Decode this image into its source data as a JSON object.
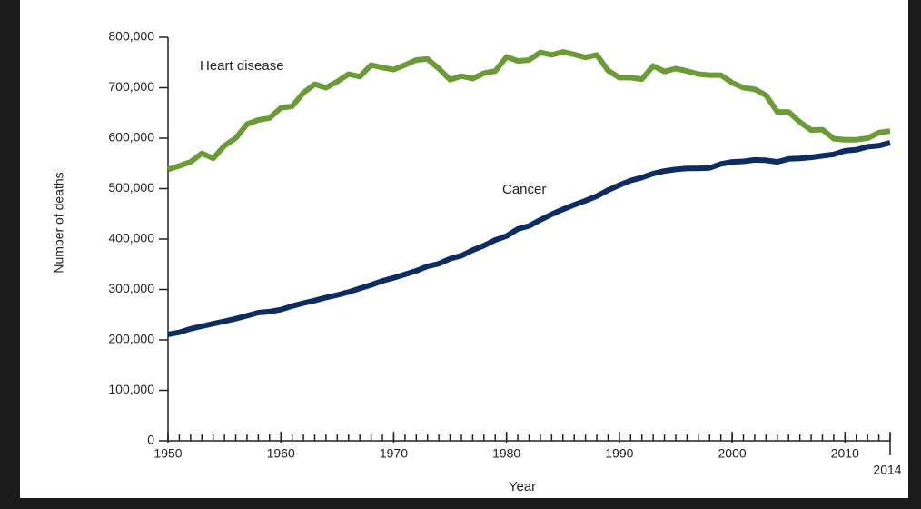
{
  "chart_data": {
    "type": "line",
    "x_label": "Year",
    "y_label": "Number of deaths",
    "x": [
      1950,
      1951,
      1952,
      1953,
      1954,
      1955,
      1956,
      1957,
      1958,
      1959,
      1960,
      1961,
      1962,
      1963,
      1964,
      1965,
      1966,
      1967,
      1968,
      1969,
      1970,
      1971,
      1972,
      1973,
      1974,
      1975,
      1976,
      1977,
      1978,
      1979,
      1980,
      1981,
      1982,
      1983,
      1984,
      1985,
      1986,
      1987,
      1988,
      1989,
      1990,
      1991,
      1992,
      1993,
      1994,
      1995,
      1996,
      1997,
      1998,
      1999,
      2000,
      2001,
      2002,
      2003,
      2004,
      2005,
      2006,
      2007,
      2008,
      2009,
      2010,
      2011,
      2012,
      2013,
      2014
    ],
    "series": [
      {
        "name": "Heart disease",
        "color": "#6b9b37",
        "values": [
          538000,
          545000,
          553000,
          570000,
          560000,
          585000,
          600000,
          628000,
          636000,
          640000,
          660000,
          663000,
          690000,
          707000,
          700000,
          712000,
          727000,
          722000,
          745000,
          740000,
          736000,
          745000,
          755000,
          757000,
          738000,
          716000,
          723000,
          718000,
          729000,
          733000,
          761000,
          753000,
          755000,
          770000,
          765000,
          771000,
          766000,
          760000,
          765000,
          734000,
          720000,
          720000,
          717000,
          743000,
          732000,
          738000,
          733000,
          727000,
          725000,
          725000,
          710000,
          700000,
          697000,
          685000,
          652000,
          652000,
          632000,
          616000,
          617000,
          599000,
          597000,
          597000,
          600000,
          611000,
          614000
        ]
      },
      {
        "name": "Cancer",
        "color": "#0c2c62",
        "values": [
          211000,
          215000,
          222000,
          227000,
          232000,
          237000,
          242000,
          248000,
          254000,
          256000,
          260000,
          267000,
          273000,
          278000,
          284000,
          289000,
          295000,
          302000,
          309000,
          317000,
          323000,
          330000,
          337000,
          346000,
          351000,
          361000,
          367000,
          378000,
          387000,
          398000,
          406000,
          420000,
          426000,
          438000,
          449000,
          459000,
          468000,
          476000,
          485000,
          497000,
          507000,
          516000,
          522000,
          530000,
          535000,
          538000,
          540000,
          540000,
          541000,
          549000,
          553000,
          554000,
          557000,
          556000,
          553000,
          559000,
          560000,
          562000,
          565000,
          568000,
          575000,
          577000,
          583000,
          585000,
          591000
        ]
      }
    ],
    "xlim": [
      1950,
      2014
    ],
    "xticks": [
      1950,
      1960,
      1970,
      1980,
      1990,
      2000,
      2010,
      2014
    ],
    "ylim": [
      0,
      800000
    ],
    "yticks": [
      0,
      {
        "value": 100000,
        "label": "100,000"
      },
      {
        "value": 200000,
        "label": "200,000"
      },
      {
        "value": 300000,
        "label": "300,000"
      },
      {
        "value": 400000,
        "label": "400,000"
      },
      {
        "value": 500000,
        "label": "500,000"
      },
      {
        "value": 600000,
        "label": "600,000"
      },
      {
        "value": 700000,
        "label": "700,000"
      },
      {
        "value": 800000,
        "label": "800,000"
      }
    ]
  }
}
